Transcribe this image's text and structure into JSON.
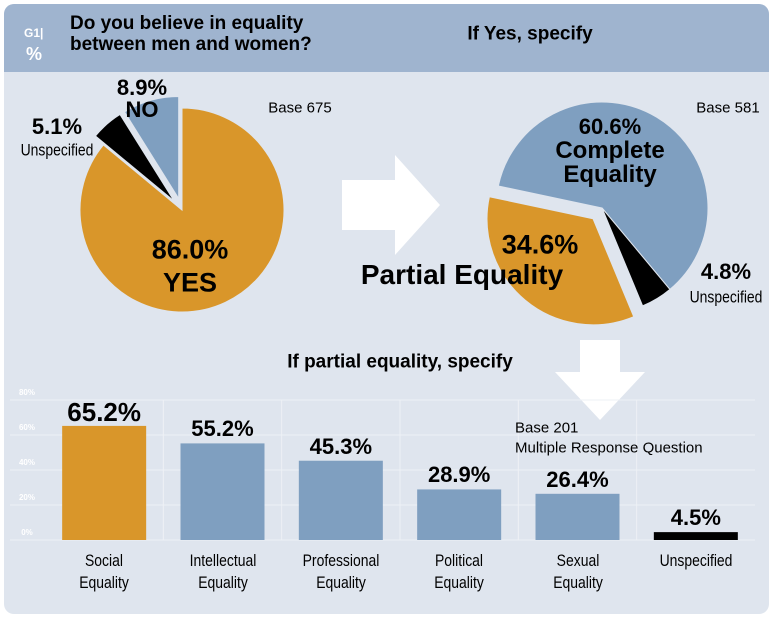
{
  "header": {
    "code": "G1|",
    "unit": "%"
  },
  "chart_data": [
    {
      "type": "pie",
      "title": "Do you believe in equality between men and women?",
      "note": "Base 675",
      "categories": [
        "YES",
        "NO",
        "Unspecified"
      ],
      "values": [
        86.0,
        8.9,
        5.1
      ],
      "value_labels": [
        "86.0%",
        "8.9%",
        "5.1%"
      ],
      "colors": [
        "#d9962a",
        "#7f9fc0",
        "#000000"
      ]
    },
    {
      "type": "pie",
      "title": "If Yes, specify",
      "note": "Base 581",
      "categories": [
        "Complete Equality",
        "Partial Equality",
        "Unspecified"
      ],
      "values": [
        60.6,
        34.6,
        4.8
      ],
      "value_labels": [
        "60.6%",
        "34.6%",
        "4.8%"
      ],
      "colors": [
        "#7f9fc0",
        "#d9962a",
        "#000000"
      ]
    },
    {
      "type": "bar",
      "title": "If partial equality, specify",
      "notes": [
        "Base 201",
        "Multiple Response Question"
      ],
      "categories": [
        "Social Equality",
        "Intellectual Equality",
        "Professional Equality",
        "Political Equality",
        "Sexual Equality",
        "Unspecified"
      ],
      "values": [
        65.2,
        55.2,
        45.3,
        28.9,
        26.4,
        4.5
      ],
      "value_labels": [
        "65.2%",
        "55.2%",
        "45.3%",
        "28.9%",
        "26.4%",
        "4.5%"
      ],
      "colors": [
        "#d9962a",
        "#7f9fc0",
        "#7f9fc0",
        "#7f9fc0",
        "#7f9fc0",
        "#000000"
      ],
      "ylim": [
        0,
        80
      ],
      "yticks": [
        {
          "value": 0,
          "label": "0%"
        },
        {
          "value": 20,
          "label": "20%"
        },
        {
          "value": 40,
          "label": "40%"
        },
        {
          "value": 60,
          "label": "60%"
        },
        {
          "value": 80,
          "label": "80%"
        }
      ],
      "grid": true
    }
  ]
}
